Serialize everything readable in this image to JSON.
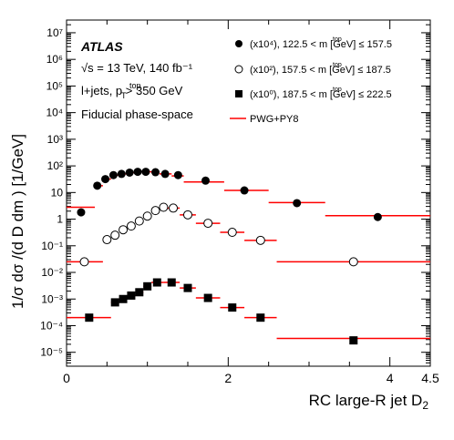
{
  "chart_data": {
    "type": "scatter",
    "title": "",
    "xlabel": "RC large-R jet D",
    "xlabel_sub": "2",
    "ylabel": "1/σ dσ /(d D dm ) [1/GeV]",
    "xlim": [
      0,
      4.5
    ],
    "ylim": [
      3e-06,
      30000000.0
    ],
    "yscale": "log",
    "x_ticks": [
      {
        "value": 0,
        "label": "0"
      },
      {
        "value": 2,
        "label": "2"
      },
      {
        "value": 4,
        "label": "4"
      },
      {
        "value": 4.5,
        "label": "4.5"
      }
    ],
    "y_ticks": [
      {
        "exp": -5,
        "label": "10⁻⁵"
      },
      {
        "exp": -4,
        "label": "10⁻⁴"
      },
      {
        "exp": -3,
        "label": "10⁻³"
      },
      {
        "exp": -2,
        "label": "10⁻²"
      },
      {
        "exp": -1,
        "label": "10⁻¹"
      },
      {
        "exp": 0,
        "label": "1"
      },
      {
        "exp": 1,
        "label": "10"
      },
      {
        "exp": 2,
        "label": "10²"
      },
      {
        "exp": 3,
        "label": "10³"
      },
      {
        "exp": 4,
        "label": "10⁴"
      },
      {
        "exp": 5,
        "label": "10⁵"
      },
      {
        "exp": 6,
        "label": "10⁶"
      },
      {
        "exp": 7,
        "label": "10⁷"
      }
    ],
    "annotations": {
      "experiment": "ATLAS",
      "energy": "√s = 13 TeV, 140  fb⁻¹",
      "selection": "l+jets, p > 350 GeV",
      "selection_sup": "top",
      "selection_sub": "T",
      "phase_space": "Fiducial phase-space"
    },
    "legend_position": "top-right",
    "series": [
      {
        "name": "(x10⁴), 122.5 < m [GeV] ≤ 157.5",
        "name_sup": "top",
        "marker": "filled-circle",
        "points": [
          {
            "x": 0.18,
            "y": 1.8,
            "xlo": 0.0,
            "xhi": 0.35,
            "pred": 2.8
          },
          {
            "x": 0.38,
            "y": 18,
            "xlo": 0.35,
            "xhi": 0.45,
            "pred": 18
          },
          {
            "x": 0.48,
            "y": 32,
            "xlo": 0.45,
            "xhi": 0.55,
            "pred": 32
          },
          {
            "x": 0.58,
            "y": 45,
            "xlo": 0.55,
            "xhi": 0.65,
            "pred": 45
          },
          {
            "x": 0.68,
            "y": 50,
            "xlo": 0.65,
            "xhi": 0.75,
            "pred": 50
          },
          {
            "x": 0.78,
            "y": 56,
            "xlo": 0.75,
            "xhi": 0.85,
            "pred": 56
          },
          {
            "x": 0.88,
            "y": 60,
            "xlo": 0.85,
            "xhi": 0.95,
            "pred": 60
          },
          {
            "x": 0.98,
            "y": 60,
            "xlo": 0.95,
            "xhi": 1.05,
            "pred": 60
          },
          {
            "x": 1.1,
            "y": 58,
            "xlo": 1.05,
            "xhi": 1.15,
            "pred": 58
          },
          {
            "x": 1.22,
            "y": 50,
            "xlo": 1.15,
            "xhi": 1.3,
            "pred": 50
          },
          {
            "x": 1.38,
            "y": 45,
            "xlo": 1.3,
            "xhi": 1.45,
            "pred": 42
          },
          {
            "x": 1.72,
            "y": 28,
            "xlo": 1.45,
            "xhi": 1.95,
            "pred": 25
          },
          {
            "x": 2.2,
            "y": 12,
            "xlo": 1.95,
            "xhi": 2.5,
            "pred": 12
          },
          {
            "x": 2.85,
            "y": 4,
            "xlo": 2.5,
            "xhi": 3.2,
            "pred": 4.2
          },
          {
            "x": 3.85,
            "y": 1.2,
            "xlo": 3.2,
            "xhi": 4.5,
            "pred": 1.35
          }
        ]
      },
      {
        "name": "(x10²), 157.5 < m [GeV] ≤ 187.5",
        "name_sup": "top",
        "marker": "open-circle",
        "points": [
          {
            "x": 0.22,
            "y": 0.025,
            "xlo": 0.0,
            "xhi": 0.45,
            "pred": 0.025
          },
          {
            "x": 0.5,
            "y": 0.17,
            "xlo": 0.45,
            "xhi": 0.55,
            "pred": 0.17
          },
          {
            "x": 0.6,
            "y": 0.25,
            "xlo": 0.55,
            "xhi": 0.65,
            "pred": 0.25
          },
          {
            "x": 0.7,
            "y": 0.4,
            "xlo": 0.65,
            "xhi": 0.75,
            "pred": 0.4
          },
          {
            "x": 0.8,
            "y": 0.55,
            "xlo": 0.75,
            "xhi": 0.85,
            "pred": 0.55
          },
          {
            "x": 0.9,
            "y": 0.85,
            "xlo": 0.85,
            "xhi": 0.95,
            "pred": 0.85
          },
          {
            "x": 1.0,
            "y": 1.3,
            "xlo": 0.95,
            "xhi": 1.05,
            "pred": 1.3
          },
          {
            "x": 1.1,
            "y": 2.1,
            "xlo": 1.05,
            "xhi": 1.15,
            "pred": 2.1
          },
          {
            "x": 1.2,
            "y": 2.8,
            "xlo": 1.15,
            "xhi": 1.25,
            "pred": 2.8
          },
          {
            "x": 1.32,
            "y": 2.6,
            "xlo": 1.25,
            "xhi": 1.4,
            "pred": 2.6
          },
          {
            "x": 1.5,
            "y": 1.45,
            "xlo": 1.4,
            "xhi": 1.6,
            "pred": 1.45
          },
          {
            "x": 1.75,
            "y": 0.7,
            "xlo": 1.6,
            "xhi": 1.9,
            "pred": 0.7
          },
          {
            "x": 2.05,
            "y": 0.32,
            "xlo": 1.9,
            "xhi": 2.2,
            "pred": 0.32
          },
          {
            "x": 2.4,
            "y": 0.16,
            "xlo": 2.2,
            "xhi": 2.6,
            "pred": 0.16
          },
          {
            "x": 3.55,
            "y": 0.025,
            "xlo": 2.6,
            "xhi": 4.5,
            "pred": 0.025
          }
        ]
      },
      {
        "name": "(x10⁰), 187.5 < m [GeV] ≤ 222.5",
        "name_sup": "top",
        "marker": "filled-square",
        "points": [
          {
            "x": 0.28,
            "y": 0.0002,
            "xlo": 0.0,
            "xhi": 0.55,
            "pred": 0.0002
          },
          {
            "x": 0.6,
            "y": 0.00075,
            "xlo": 0.55,
            "xhi": 0.65,
            "pred": 0.00075
          },
          {
            "x": 0.7,
            "y": 0.001,
            "xlo": 0.65,
            "xhi": 0.75,
            "pred": 0.001
          },
          {
            "x": 0.8,
            "y": 0.00135,
            "xlo": 0.75,
            "xhi": 0.85,
            "pred": 0.00135
          },
          {
            "x": 0.9,
            "y": 0.0018,
            "xlo": 0.85,
            "xhi": 0.95,
            "pred": 0.0018
          },
          {
            "x": 1.0,
            "y": 0.003,
            "xlo": 0.95,
            "xhi": 1.05,
            "pred": 0.003
          },
          {
            "x": 1.12,
            "y": 0.0042,
            "xlo": 1.05,
            "xhi": 1.2,
            "pred": 0.0042
          },
          {
            "x": 1.3,
            "y": 0.0042,
            "xlo": 1.2,
            "xhi": 1.4,
            "pred": 0.0042
          },
          {
            "x": 1.5,
            "y": 0.0026,
            "xlo": 1.4,
            "xhi": 1.6,
            "pred": 0.0026
          },
          {
            "x": 1.75,
            "y": 0.0011,
            "xlo": 1.6,
            "xhi": 1.9,
            "pred": 0.0011
          },
          {
            "x": 2.05,
            "y": 0.00048,
            "xlo": 1.9,
            "xhi": 2.2,
            "pred": 0.00048
          },
          {
            "x": 2.4,
            "y": 0.0002,
            "xlo": 2.2,
            "xhi": 2.6,
            "pred": 0.0002
          },
          {
            "x": 3.55,
            "y": 2.8e-05,
            "xlo": 2.6,
            "xhi": 4.5,
            "pred": 3.3e-05
          }
        ]
      }
    ],
    "prediction": {
      "name": "PWG+PY8",
      "color": "#ff0000"
    }
  }
}
